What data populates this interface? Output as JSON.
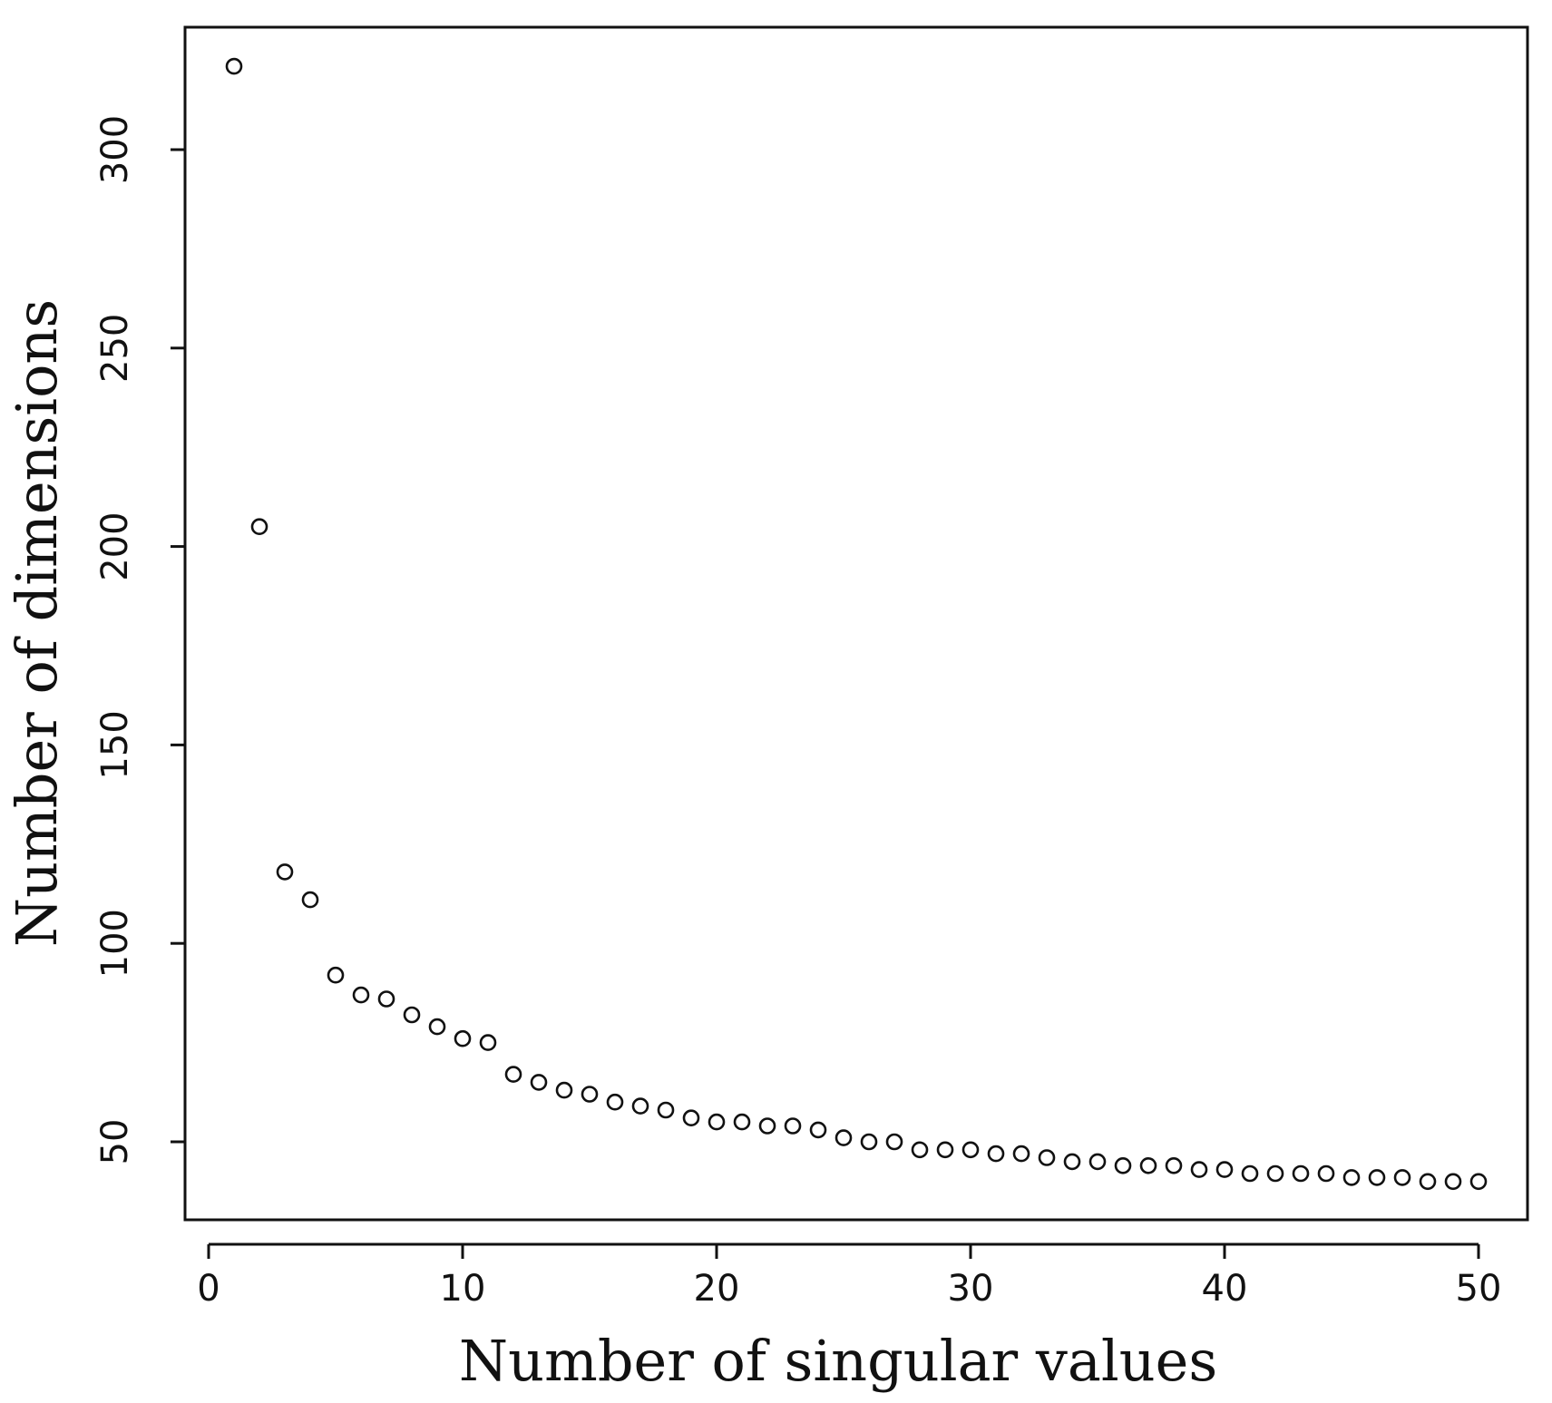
{
  "chart_data": {
    "type": "scatter",
    "title": "",
    "xlabel": "Number of singular values",
    "ylabel": "Number of dimensions",
    "xlim": [
      0,
      50
    ],
    "ylim": [
      30,
      330
    ],
    "x_ticks": [
      0,
      10,
      20,
      30,
      40,
      50
    ],
    "y_ticks": [
      50,
      100,
      150,
      200,
      250,
      300
    ],
    "marker": "open-circle",
    "grid": false,
    "legend": "none",
    "colors": {
      "marker": "#111111",
      "axis": "#111111",
      "background": "#ffffff"
    },
    "series": [
      {
        "x": [
          1,
          2,
          3,
          4,
          5,
          6,
          7,
          8,
          9,
          10,
          11,
          12,
          13,
          14,
          15,
          16,
          17,
          18,
          19,
          20,
          21,
          22,
          23,
          24,
          25,
          26,
          27,
          28,
          29,
          30,
          31,
          32,
          33,
          34,
          35,
          36,
          37,
          38,
          39,
          40,
          41,
          42,
          43,
          44,
          45,
          46,
          47,
          48,
          49,
          50
        ],
        "y": [
          321,
          205,
          118,
          111,
          92,
          87,
          86,
          82,
          79,
          76,
          75,
          67,
          65,
          63,
          62,
          60,
          59,
          58,
          56,
          55,
          55,
          54,
          54,
          53,
          51,
          50,
          50,
          48,
          48,
          48,
          47,
          47,
          46,
          45,
          45,
          44,
          44,
          44,
          43,
          43,
          42,
          42,
          42,
          42,
          41,
          41,
          41,
          40,
          40,
          40
        ]
      }
    ]
  }
}
